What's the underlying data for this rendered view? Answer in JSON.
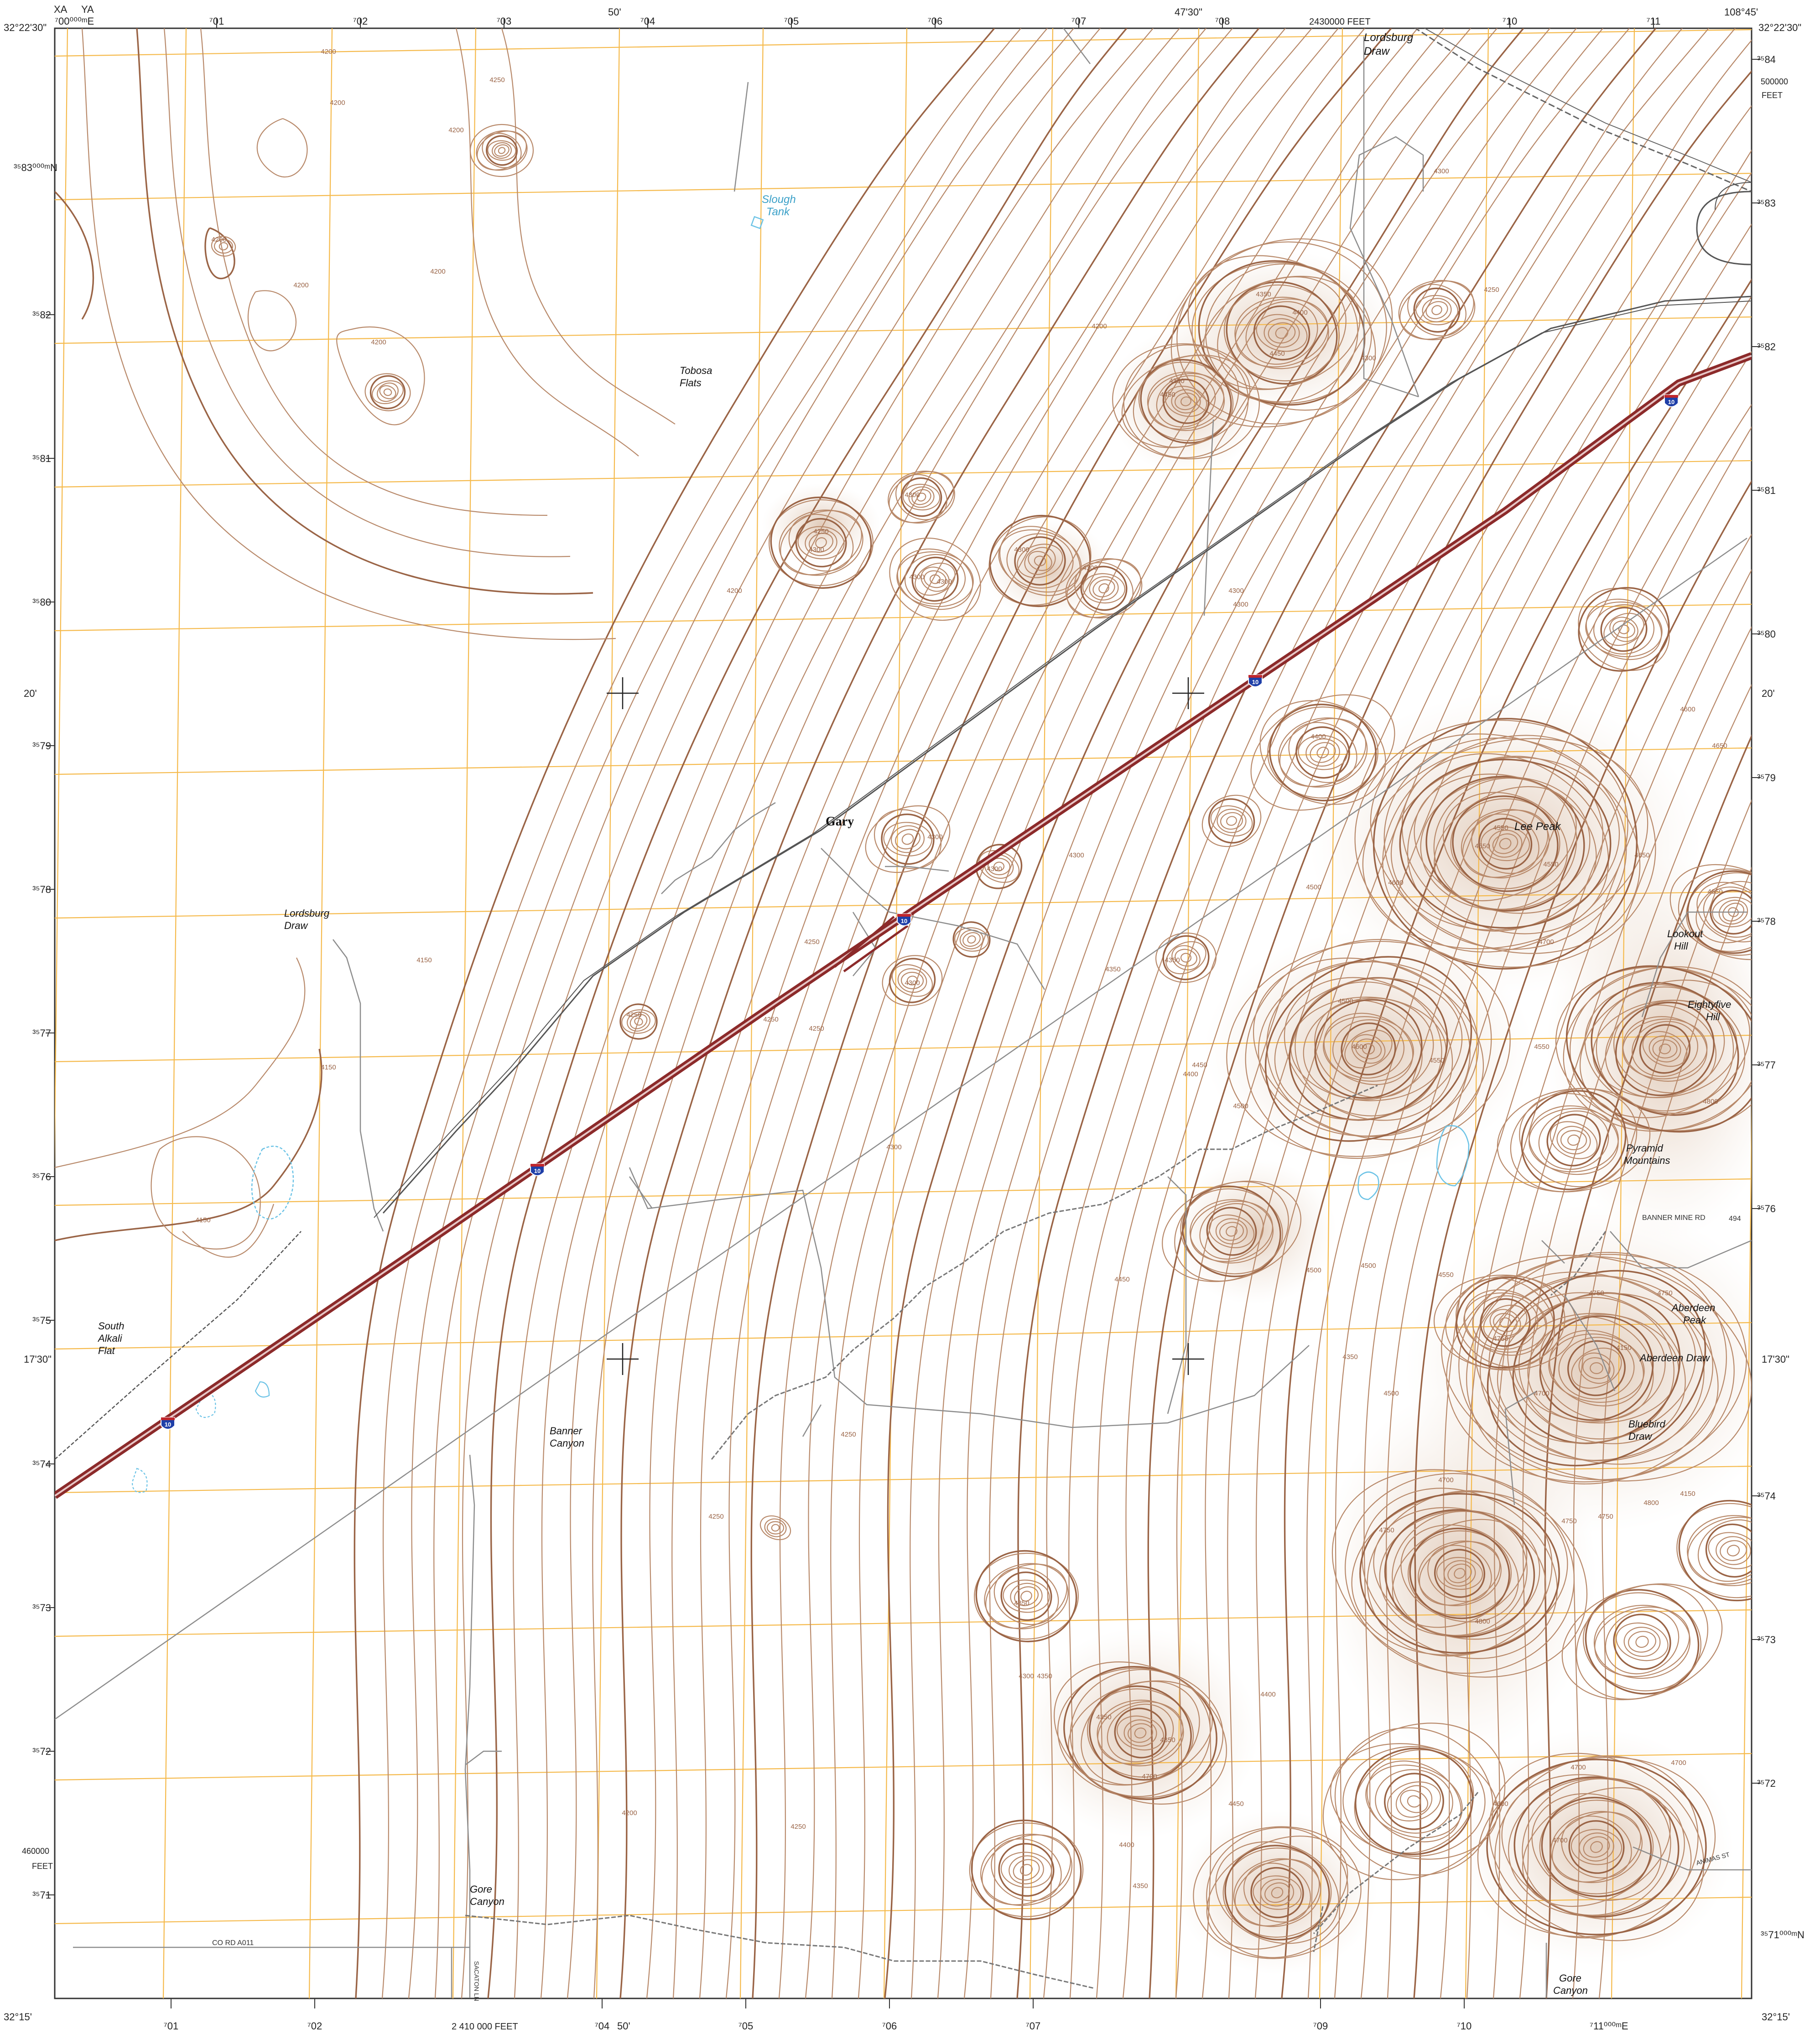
{
  "collar": {
    "top_left_lat": "32°22'30\"",
    "top_right_lon": "108°45'",
    "bottom_left_lat": "32°15'",
    "bottom_right_lat": "32°15'",
    "top_mid_lon_1": "50'",
    "top_mid_lon_2": "47'30\"",
    "bottom_mid_lon": "50'",
    "left_mid_lat_1": "20'",
    "left_mid_lat_2": "17'30\"",
    "right_mid_lat_1": "20'",
    "right_mid_lat_2": "17'30\"",
    "xa": "XA",
    "ya": "YA",
    "top_easting_first": "⁷00⁰⁰⁰ᵐE",
    "bottom_easting_last": "⁷11⁰⁰⁰ᵐE",
    "northing_top_label": "³⁵83⁰⁰⁰ᵐN",
    "northing_bottom_label": "³⁵71⁰⁰⁰ᵐN",
    "top_easting_ticks": [
      "⁷01",
      "⁷02",
      "⁷03",
      "⁷04",
      "⁷05",
      "⁷06",
      "⁷07",
      "⁷08",
      "⁷10",
      "⁷11"
    ],
    "bottom_easting_ticks": [
      "⁷01",
      "⁷02",
      "⁷04",
      "⁷05",
      "⁷06",
      "⁷07",
      "⁷09",
      "⁷10"
    ],
    "left_northing_ticks": [
      "³⁵82",
      "³⁵81",
      "³⁵80",
      "³⁵79",
      "³⁵78",
      "³⁵77",
      "³⁵76",
      "³⁵75",
      "³⁵74",
      "³⁵73",
      "³⁵72",
      "³⁵71"
    ],
    "right_northing_ticks": [
      "³⁵84",
      "³⁵83",
      "³⁵82",
      "³⁵81",
      "³⁵80",
      "³⁵79",
      "³⁵78",
      "³⁵77",
      "³⁵76",
      "³⁵74",
      "³⁵73",
      "³⁵72"
    ],
    "feet_top": "2430000 FEET",
    "feet_bottom": "2 410 000 FEET",
    "feet_right_value": "500000",
    "feet_right_unit": "FEET",
    "feet_left_value": "460000",
    "feet_left_unit": "FEET"
  },
  "places": {
    "lordsburg_draw_ne": [
      "Lordsburg",
      "Draw"
    ],
    "slough_tank": [
      "Slough",
      "Tank"
    ],
    "tobosa_flats": [
      "Tobosa",
      "Flats"
    ],
    "gary": "Gary",
    "lordsburg_draw_w": [
      "Lordsburg",
      "Draw"
    ],
    "south_alkali_flat": [
      "South",
      "Alkali",
      "Flat"
    ],
    "banner_canyon": [
      "Banner",
      "Canyon"
    ],
    "gore_canyon_w": [
      "Gore",
      "Canyon"
    ],
    "gore_canyon_s": [
      "Gore",
      "Canyon"
    ],
    "lee_peak": "Lee Peak",
    "lookout_hill": [
      "Lookout",
      "Hill"
    ],
    "eightyfive_hill": [
      "Eightyfive",
      "Hill"
    ],
    "pyramid_mountains": [
      "Pyramid",
      "Mountains"
    ],
    "aberdeen_peak": [
      "Aberdeen",
      "Peak"
    ],
    "aberdeen_draw": "Aberdeen Draw",
    "bluebird_draw": [
      "Bluebird",
      "Draw"
    ]
  },
  "roads": {
    "interstate_shield": "10",
    "banner_mine_rd": "BANNER MINE RD",
    "route_494": "494",
    "co_rd_a011": "CO RD A011",
    "animas_st": "ANIMAS ST",
    "sacaton_ln": "SACATON LN"
  },
  "contour_labels": [
    "4200",
    "4250",
    "4300",
    "4350",
    "4400",
    "4450",
    "4500",
    "4550",
    "4600",
    "4650",
    "4700",
    "4750",
    "4800",
    "4150"
  ],
  "colors": {
    "contour": "#b8896a",
    "contour_index": "#9a6446",
    "grid": "#f5b94a",
    "interstate": "#8c2a2a",
    "water": "#3aa0c8",
    "railroad": "#555555"
  }
}
